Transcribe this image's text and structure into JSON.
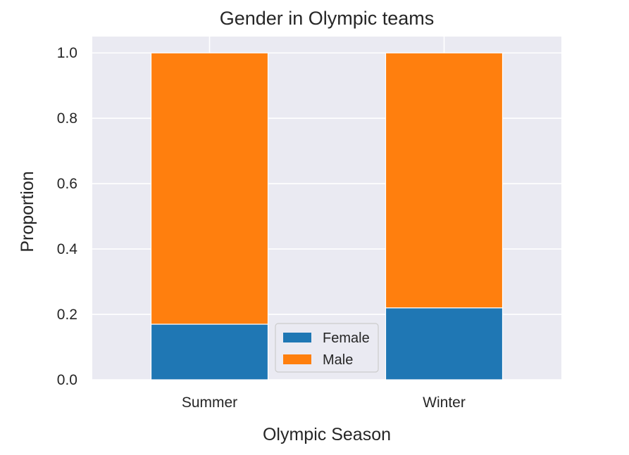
{
  "chart_data": {
    "type": "bar",
    "stacked": true,
    "title": "Gender in Olympic teams",
    "xlabel": "Olympic Season",
    "ylabel": "Proportion",
    "categories": [
      "Summer",
      "Winter"
    ],
    "series": [
      {
        "name": "Female",
        "values": [
          0.17,
          0.22
        ],
        "color": "#1f77b4"
      },
      {
        "name": "Male",
        "values": [
          0.83,
          0.78
        ],
        "color": "#ff7f0e"
      }
    ],
    "ylim": [
      0,
      1.05
    ],
    "yticks": [
      "0.0",
      "0.2",
      "0.4",
      "0.6",
      "0.8",
      "1.0"
    ],
    "ytick_values": [
      0,
      0.2,
      0.4,
      0.6,
      0.8,
      1.0
    ],
    "grid": true,
    "legend_position": "lower-center",
    "colors": {
      "plot_background": "#eaeaf2",
      "grid": "#ffffff"
    }
  }
}
